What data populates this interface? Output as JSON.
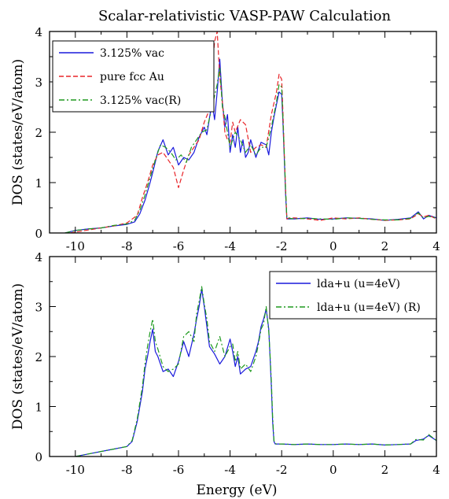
{
  "figure": {
    "title": "Scalar-relativistic VASP-PAW Calculation",
    "xlabel": "Energy (eV)"
  },
  "colors": {
    "blue": "#1a1adc",
    "red": "#e8252a",
    "green": "#1e9a1e"
  },
  "chart_data": [
    {
      "type": "line",
      "title": "Scalar-relativistic VASP-PAW Calculation",
      "xlabel": "",
      "ylabel": "DOS (states/eV/atom)",
      "xlim": [
        -11,
        4
      ],
      "ylim": [
        0,
        4
      ],
      "xticks": [
        -10,
        -8,
        -6,
        -4,
        -2,
        0,
        2,
        4
      ],
      "yticks": [
        0,
        1,
        2,
        3,
        4
      ],
      "legend_position": "top-left",
      "series": [
        {
          "name": "3.125% vac",
          "color": "#1a1adc",
          "style": "solid",
          "x": [
            -10.4,
            -10.0,
            -9.5,
            -9.0,
            -8.5,
            -8.0,
            -7.7,
            -7.5,
            -7.3,
            -7.1,
            -7.0,
            -6.8,
            -6.6,
            -6.4,
            -6.2,
            -6.0,
            -5.8,
            -5.6,
            -5.4,
            -5.2,
            -5.0,
            -4.9,
            -4.7,
            -4.6,
            -4.5,
            -4.4,
            -4.3,
            -4.2,
            -4.1,
            -4.0,
            -3.9,
            -3.8,
            -3.7,
            -3.6,
            -3.5,
            -3.4,
            -3.3,
            -3.2,
            -3.0,
            -2.8,
            -2.6,
            -2.5,
            -2.4,
            -2.3,
            -2.2,
            -2.1,
            -2.0,
            -1.95,
            -1.9,
            -1.85,
            -1.8,
            -1.7,
            -1.5,
            -1.0,
            -0.5,
            0.0,
            0.5,
            1.0,
            1.5,
            2.0,
            2.5,
            3.0,
            3.3,
            3.5,
            3.7,
            4.0
          ],
          "y": [
            0.0,
            0.05,
            0.08,
            0.1,
            0.14,
            0.17,
            0.22,
            0.38,
            0.65,
            1.0,
            1.2,
            1.62,
            1.85,
            1.55,
            1.7,
            1.35,
            1.5,
            1.45,
            1.6,
            1.9,
            2.1,
            1.95,
            2.6,
            2.25,
            2.8,
            3.45,
            2.6,
            2.1,
            2.35,
            1.6,
            1.95,
            1.7,
            2.1,
            1.6,
            1.85,
            1.5,
            1.6,
            1.85,
            1.5,
            1.8,
            1.75,
            1.55,
            2.0,
            2.3,
            2.55,
            2.8,
            2.75,
            2.2,
            1.5,
            0.8,
            0.28,
            0.28,
            0.28,
            0.3,
            0.27,
            0.28,
            0.3,
            0.29,
            0.28,
            0.25,
            0.27,
            0.3,
            0.42,
            0.28,
            0.35,
            0.3
          ]
        },
        {
          "name": "pure fcc Au",
          "color": "#e8252a",
          "style": "dashed",
          "x": [
            -10.2,
            -9.5,
            -9.0,
            -8.5,
            -8.0,
            -7.6,
            -7.4,
            -7.2,
            -7.0,
            -6.8,
            -6.6,
            -6.4,
            -6.2,
            -6.0,
            -5.8,
            -5.6,
            -5.4,
            -5.2,
            -5.0,
            -4.8,
            -4.7,
            -4.6,
            -4.5,
            -4.4,
            -4.3,
            -4.2,
            -4.1,
            -4.0,
            -3.9,
            -3.8,
            -3.6,
            -3.4,
            -3.2,
            -3.0,
            -2.8,
            -2.6,
            -2.4,
            -2.2,
            -2.1,
            -2.0,
            -1.95,
            -1.9,
            -1.85,
            -1.8,
            -1.7,
            -1.5,
            -1.0,
            -0.5,
            0.0,
            0.5,
            1.0,
            1.5,
            2.0,
            2.5,
            3.0,
            3.3,
            3.5,
            3.7,
            4.0
          ],
          "y": [
            0.0,
            0.06,
            0.1,
            0.14,
            0.2,
            0.35,
            0.7,
            1.0,
            1.35,
            1.55,
            1.6,
            1.45,
            1.3,
            0.9,
            1.25,
            1.55,
            1.7,
            1.85,
            2.2,
            2.45,
            3.2,
            3.8,
            4.0,
            3.1,
            2.6,
            2.0,
            1.85,
            1.8,
            2.2,
            2.0,
            2.25,
            2.15,
            1.6,
            1.7,
            1.75,
            1.7,
            2.35,
            2.8,
            3.15,
            3.05,
            2.4,
            1.6,
            0.9,
            0.28,
            0.3,
            0.3,
            0.28,
            0.25,
            0.3,
            0.28,
            0.3,
            0.27,
            0.25,
            0.26,
            0.28,
            0.38,
            0.32,
            0.35,
            0.28
          ]
        },
        {
          "name": "3.125% vac(R)",
          "color": "#1e9a1e",
          "style": "dashdot",
          "x": [
            -10.4,
            -10.0,
            -9.5,
            -9.0,
            -8.5,
            -8.0,
            -7.7,
            -7.5,
            -7.3,
            -7.1,
            -6.9,
            -6.7,
            -6.5,
            -6.3,
            -6.1,
            -5.9,
            -5.7,
            -5.5,
            -5.3,
            -5.1,
            -4.9,
            -4.7,
            -4.5,
            -4.4,
            -4.3,
            -4.2,
            -4.0,
            -3.8,
            -3.6,
            -3.4,
            -3.2,
            -3.0,
            -2.8,
            -2.6,
            -2.4,
            -2.2,
            -2.1,
            -2.0,
            -1.9,
            -1.85,
            -1.8,
            -1.7,
            -1.5,
            -1.0,
            -0.5,
            0.0,
            0.5,
            1.0,
            1.5,
            2.0,
            2.5,
            3.0,
            3.3,
            3.5,
            3.7,
            4.0
          ],
          "y": [
            0.0,
            0.05,
            0.08,
            0.1,
            0.15,
            0.18,
            0.25,
            0.45,
            0.75,
            1.1,
            1.45,
            1.75,
            1.7,
            1.6,
            1.45,
            1.55,
            1.4,
            1.7,
            1.85,
            2.0,
            2.05,
            2.5,
            2.95,
            3.3,
            2.5,
            2.3,
            1.7,
            2.0,
            1.85,
            1.6,
            1.75,
            1.55,
            1.7,
            1.7,
            2.1,
            2.6,
            2.95,
            2.9,
            1.6,
            0.9,
            0.3,
            0.29,
            0.28,
            0.29,
            0.28,
            0.27,
            0.3,
            0.29,
            0.27,
            0.26,
            0.26,
            0.29,
            0.4,
            0.3,
            0.33,
            0.3
          ]
        }
      ]
    },
    {
      "type": "line",
      "xlabel": "Energy (eV)",
      "ylabel": "DOS (states/eV/atom)",
      "xlim": [
        -11,
        4
      ],
      "ylim": [
        0,
        4
      ],
      "xticks": [
        -10,
        -8,
        -6,
        -4,
        -2,
        0,
        2,
        4
      ],
      "yticks": [
        0,
        1,
        2,
        3,
        4
      ],
      "legend_position": "top-right",
      "series": [
        {
          "name": "lda+u (u=4eV)",
          "color": "#1a1adc",
          "style": "solid",
          "x": [
            -10.0,
            -9.5,
            -9.0,
            -8.5,
            -8.0,
            -7.8,
            -7.6,
            -7.4,
            -7.3,
            -7.2,
            -7.1,
            -7.0,
            -6.9,
            -6.8,
            -6.6,
            -6.4,
            -6.2,
            -6.0,
            -5.8,
            -5.6,
            -5.4,
            -5.3,
            -5.2,
            -5.1,
            -5.0,
            -4.9,
            -4.8,
            -4.6,
            -4.4,
            -4.2,
            -4.0,
            -3.9,
            -3.8,
            -3.7,
            -3.6,
            -3.4,
            -3.2,
            -3.0,
            -2.9,
            -2.8,
            -2.7,
            -2.6,
            -2.5,
            -2.45,
            -2.4,
            -2.35,
            -2.3,
            -2.25,
            -2.2,
            -2.0,
            -1.5,
            -1.0,
            -0.5,
            0.0,
            0.5,
            1.0,
            1.5,
            2.0,
            2.5,
            3.0,
            3.2,
            3.5,
            3.7,
            4.0
          ],
          "y": [
            0.0,
            0.05,
            0.1,
            0.15,
            0.2,
            0.3,
            0.7,
            1.3,
            1.75,
            2.0,
            2.3,
            2.55,
            2.1,
            2.0,
            1.7,
            1.75,
            1.6,
            1.9,
            2.3,
            2.0,
            2.45,
            2.75,
            3.0,
            3.35,
            3.0,
            2.6,
            2.2,
            2.05,
            1.85,
            2.0,
            2.35,
            2.1,
            1.8,
            2.0,
            1.65,
            1.75,
            1.8,
            2.1,
            2.3,
            2.6,
            2.75,
            2.95,
            2.55,
            2.0,
            1.4,
            0.7,
            0.3,
            0.25,
            0.25,
            0.25,
            0.24,
            0.25,
            0.24,
            0.24,
            0.25,
            0.24,
            0.25,
            0.23,
            0.24,
            0.25,
            0.32,
            0.35,
            0.42,
            0.32
          ]
        },
        {
          "name": "lda+u (u=4eV) (R)",
          "color": "#1e9a1e",
          "style": "dashdot",
          "x": [
            -10.0,
            -9.5,
            -9.0,
            -8.5,
            -8.0,
            -7.8,
            -7.6,
            -7.4,
            -7.3,
            -7.2,
            -7.1,
            -7.0,
            -6.9,
            -6.8,
            -6.6,
            -6.4,
            -6.2,
            -6.0,
            -5.8,
            -5.6,
            -5.4,
            -5.3,
            -5.2,
            -5.1,
            -5.0,
            -4.9,
            -4.8,
            -4.6,
            -4.4,
            -4.2,
            -4.0,
            -3.9,
            -3.8,
            -3.7,
            -3.6,
            -3.4,
            -3.2,
            -3.0,
            -2.9,
            -2.8,
            -2.7,
            -2.6,
            -2.5,
            -2.45,
            -2.4,
            -2.35,
            -2.3,
            -2.25,
            -2.2,
            -2.0,
            -1.5,
            -1.0,
            -0.5,
            0.0,
            0.5,
            1.0,
            1.5,
            2.0,
            2.5,
            3.0,
            3.2,
            3.5,
            3.7,
            4.0
          ],
          "y": [
            0.0,
            0.05,
            0.1,
            0.15,
            0.2,
            0.32,
            0.75,
            1.4,
            1.85,
            2.2,
            2.5,
            2.75,
            2.3,
            2.15,
            1.8,
            1.7,
            1.75,
            1.85,
            2.4,
            2.5,
            2.3,
            2.85,
            3.1,
            3.4,
            3.05,
            2.75,
            2.3,
            2.1,
            2.4,
            2.0,
            2.2,
            2.25,
            1.9,
            2.1,
            1.75,
            1.85,
            1.7,
            2.0,
            2.25,
            2.55,
            2.65,
            3.0,
            2.5,
            2.05,
            1.5,
            0.8,
            0.32,
            0.26,
            0.25,
            0.25,
            0.24,
            0.25,
            0.24,
            0.24,
            0.25,
            0.24,
            0.25,
            0.23,
            0.24,
            0.25,
            0.34,
            0.33,
            0.44,
            0.32
          ]
        }
      ]
    }
  ]
}
